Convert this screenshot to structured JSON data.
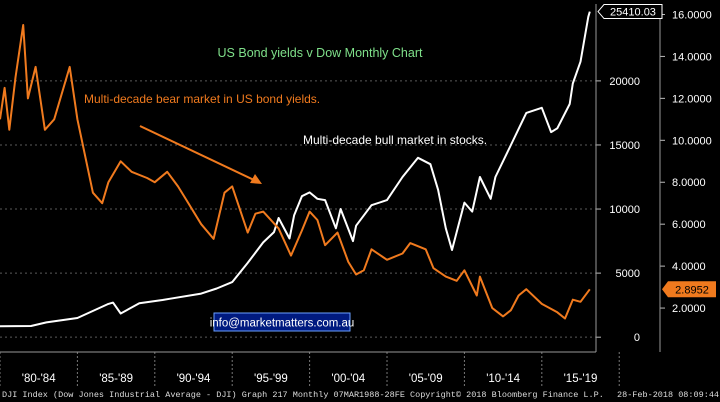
{
  "chart_data": {
    "type": "line",
    "title": "US Bond yields v Dow Monthly Chart",
    "annotations": [
      {
        "text": "Multi-decade bear market in US bond yields.",
        "color": "#f07a1e"
      },
      {
        "text": "Multi-decade bull market in stocks.",
        "color": "#ffffff"
      },
      {
        "text": "info@marketmatters.com.au",
        "color": "#ffffff"
      }
    ],
    "x_tick_labels": [
      "'80-'84",
      "'85-'89",
      "'90-'94",
      "'95-'99",
      "'00-'04",
      "'05-'09",
      "'10-'14",
      "'15-'19"
    ],
    "x_range": [
      1980,
      2018.5
    ],
    "y_left": {
      "ticks": [
        0,
        5000,
        10000,
        15000,
        20000
      ],
      "ylim": [
        -1000,
        26000
      ]
    },
    "y_right": {
      "ticks": [
        "2.0000",
        "4.0000",
        "6.0000",
        "8.0000",
        "10.0000",
        "12.0000",
        "14.0000",
        "16.0000"
      ],
      "ylim": [
        0,
        16.5
      ]
    },
    "series": [
      {
        "axis": "left",
        "color": "#ffffff",
        "last_value_label": "25410.03",
        "x": [
          1980.0,
          1982.0,
          1983.0,
          1985.0,
          1987.0,
          1987.3,
          1987.8,
          1989.0,
          1990.5,
          1991.0,
          1993.0,
          1994.0,
          1995.0,
          1996.0,
          1997.0,
          1997.7,
          1998.0,
          1998.7,
          1999.0,
          1999.5,
          2000.0,
          2000.5,
          2001.0,
          2001.7,
          2002.0,
          2002.8,
          2003.0,
          2004.0,
          2005.0,
          2006.0,
          2007.0,
          2007.8,
          2008.3,
          2008.8,
          2009.2,
          2010.0,
          2010.5,
          2011.0,
          2011.7,
          2012.0,
          2013.0,
          2014.0,
          2015.0,
          2015.6,
          2016.0,
          2016.8,
          2017.0,
          2017.5,
          2018.0,
          2018.1
        ],
        "y": [
          850,
          870,
          1150,
          1500,
          2600,
          2700,
          1850,
          2650,
          2900,
          3000,
          3400,
          3800,
          4300,
          5800,
          7400,
          8200,
          9300,
          7700,
          9500,
          11000,
          11300,
          10800,
          10700,
          8500,
          10000,
          7500,
          8700,
          10300,
          10700,
          12500,
          14000,
          13500,
          11500,
          8500,
          6800,
          10500,
          9800,
          12500,
          10800,
          12500,
          15000,
          17500,
          17900,
          16000,
          16300,
          18200,
          19800,
          21500,
          25000,
          25410
        ]
      },
      {
        "axis": "right",
        "color": "#f07a1e",
        "last_value_label": "2.8952",
        "x": [
          1980.0,
          1980.3,
          1980.6,
          1981.0,
          1981.5,
          1981.8,
          1982.3,
          1982.9,
          1983.5,
          1984.5,
          1985.0,
          1986.0,
          1986.6,
          1987.0,
          1987.8,
          1988.5,
          1989.5,
          1990.0,
          1990.8,
          1991.5,
          1992.0,
          1993.0,
          1993.8,
          1994.5,
          1995.0,
          1996.0,
          1996.5,
          1997.0,
          1998.0,
          1998.8,
          1999.5,
          2000.0,
          2000.5,
          2001.0,
          2001.8,
          2002.5,
          2003.0,
          2003.5,
          2004.0,
          2005.0,
          2006.0,
          2006.5,
          2007.5,
          2008.0,
          2008.8,
          2009.5,
          2010.0,
          2010.8,
          2011.0,
          2011.8,
          2012.5,
          2013.0,
          2013.5,
          2014.0,
          2015.0,
          2016.0,
          2016.5,
          2017.0,
          2017.5,
          2018.0,
          2018.1
        ],
        "y": [
          11.0,
          12.5,
          10.5,
          13.0,
          15.5,
          12.0,
          13.5,
          10.5,
          11.0,
          13.5,
          11.0,
          7.5,
          7.0,
          8.0,
          9.0,
          8.5,
          8.2,
          8.0,
          8.5,
          7.8,
          7.2,
          6.0,
          5.3,
          7.5,
          7.8,
          5.6,
          6.5,
          6.6,
          5.8,
          4.5,
          5.7,
          6.6,
          6.2,
          5.0,
          5.6,
          4.2,
          3.6,
          3.8,
          4.8,
          4.3,
          4.6,
          5.1,
          4.8,
          3.9,
          3.5,
          3.3,
          3.8,
          2.6,
          3.5,
          2.0,
          1.6,
          1.9,
          2.6,
          2.9,
          2.2,
          1.8,
          1.5,
          2.4,
          2.3,
          2.8,
          2.8952
        ]
      }
    ]
  },
  "footer": {
    "left": "DJI Index (Dow Jones Industrial Average - DJI) Graph 217  Monthly 07MAR1988-28FE",
    "center": "Copyright© 2018 Bloomberg Finance L.P.",
    "right": "28-Feb-2018 08:09:44"
  }
}
